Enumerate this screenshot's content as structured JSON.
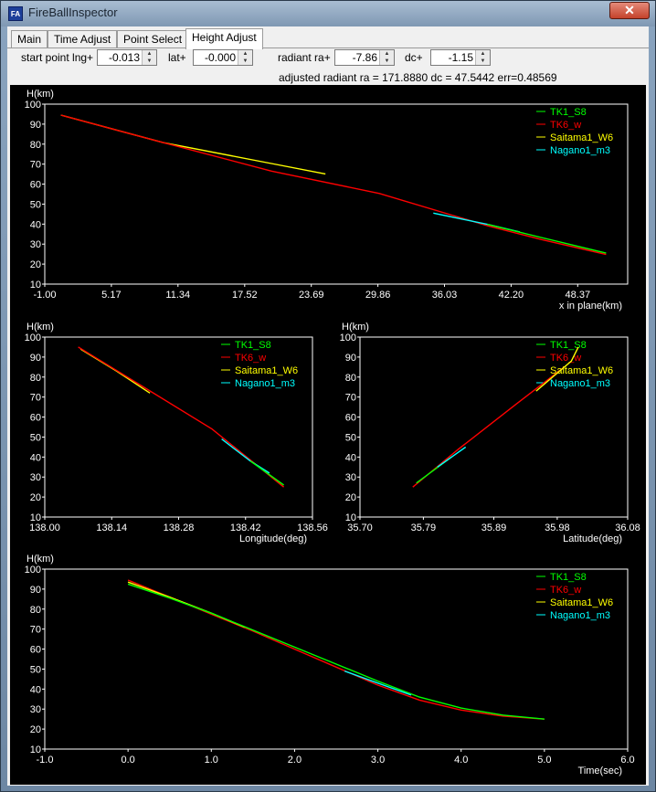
{
  "window": {
    "app_icon_text": "FA",
    "title": "FireBallInspector",
    "close_glyph": "✕"
  },
  "tabs": [
    "Main",
    "Time Adjust",
    "Point Select",
    "Height Adjust"
  ],
  "active_tab": "Height Adjust",
  "controls": {
    "start_point_lng_label": "start point lng+",
    "start_point_lng_value": "-0.013",
    "lat_label": "lat+",
    "lat_value": "-0.000",
    "radiant_ra_label": "radiant ra+",
    "radiant_ra_value": "-7.86",
    "dc_label": "dc+",
    "dc_value": "-1.15",
    "adjusted_text": "adjusted radiant ra = 171.8880  dc = 47.5442  err=0.48569"
  },
  "colors": {
    "TK1_S8": "#00ff00",
    "TK6_w": "#ff0000",
    "Saitama1_W6": "#ffff00",
    "Nagano1_m3": "#00ffff",
    "axis": "#ffffff",
    "background": "#000000"
  },
  "chart_data": [
    {
      "type": "line",
      "ylabel": "H(km)",
      "xlabel": "x in plane(km)",
      "xlim": [
        -1.0,
        53.0
      ],
      "ylim": [
        10,
        100
      ],
      "xticks": [
        "-1.00",
        "5.17",
        "11.34",
        "17.52",
        "23.69",
        "29.86",
        "36.03",
        "42.20",
        "48.37"
      ],
      "yticks": [
        "10",
        "20",
        "30",
        "40",
        "50",
        "60",
        "70",
        "80",
        "90",
        "100"
      ],
      "legend": [
        "TK1_S8",
        "TK6_w",
        "Saitama1_W6",
        "Nagano1_m3"
      ],
      "legend_position": "top-right",
      "series": [
        {
          "name": "Saitama1_W6",
          "x": [
            0.5,
            10,
            20,
            25
          ],
          "y": [
            94.5,
            80.7,
            70.3,
            65.1
          ]
        },
        {
          "name": "TK6_w",
          "x": [
            0.5,
            10,
            20,
            30,
            40,
            45,
            51
          ],
          "y": [
            94.5,
            80.7,
            66.5,
            55.3,
            39.2,
            32.3,
            24.8
          ]
        },
        {
          "name": "Nagano1_m3",
          "x": [
            35,
            40,
            43
          ],
          "y": [
            45.5,
            39.9,
            36.1
          ]
        },
        {
          "name": "TK1_S8",
          "x": [
            40,
            45,
            51
          ],
          "y": [
            39.9,
            33.3,
            25.5
          ]
        }
      ]
    },
    {
      "type": "line",
      "ylabel": "H(km)",
      "xlabel": "Longitude(deg)",
      "xlim": [
        138.0,
        138.56
      ],
      "ylim": [
        10,
        100
      ],
      "xticks": [
        "138.00",
        "138.14",
        "138.28",
        "138.42",
        "138.56"
      ],
      "yticks": [
        "10",
        "20",
        "30",
        "40",
        "50",
        "60",
        "70",
        "80",
        "90",
        "100"
      ],
      "legend": [
        "TK1_S8",
        "TK6_w",
        "Saitama1_W6",
        "Nagano1_m3"
      ],
      "legend_position": "top-right",
      "series": [
        {
          "name": "Saitama1_W6",
          "x": [
            138.075,
            138.15,
            138.22
          ],
          "y": [
            94.0,
            83.0,
            72.0
          ]
        },
        {
          "name": "TK6_w",
          "x": [
            138.07,
            138.2,
            138.35,
            138.5
          ],
          "y": [
            95.0,
            76.0,
            54.0,
            25.0
          ]
        },
        {
          "name": "Nagano1_m3",
          "x": [
            138.37,
            138.43,
            138.47
          ],
          "y": [
            49.0,
            38.0,
            32.0
          ]
        },
        {
          "name": "TK1_S8",
          "x": [
            138.43,
            138.5
          ],
          "y": [
            38.0,
            26.0
          ]
        }
      ]
    },
    {
      "type": "line",
      "ylabel": "H(km)",
      "xlabel": "Latitude(deg)",
      "xlim": [
        35.7,
        36.08
      ],
      "ylim": [
        10,
        100
      ],
      "xticks": [
        "35.70",
        "35.79",
        "35.89",
        "35.98",
        "36.08"
      ],
      "yticks": [
        "10",
        "20",
        "30",
        "40",
        "50",
        "60",
        "70",
        "80",
        "90",
        "100"
      ],
      "legend": [
        "TK1_S8",
        "TK6_w",
        "Saitama1_W6",
        "Nagano1_m3"
      ],
      "legend_position": "top-right",
      "series": [
        {
          "name": "TK6_w",
          "x": [
            35.775,
            35.84,
            35.92,
            35.99
          ],
          "y": [
            25.0,
            44.0,
            66.0,
            85.0
          ]
        },
        {
          "name": "TK1_S8",
          "x": [
            35.78,
            35.83
          ],
          "y": [
            27.0,
            40.0
          ]
        },
        {
          "name": "Nagano1_m3",
          "x": [
            35.81,
            35.85
          ],
          "y": [
            35.0,
            45.0
          ]
        },
        {
          "name": "Saitama1_W6",
          "x": [
            35.95,
            36.0,
            36.01
          ],
          "y": [
            73.0,
            88.0,
            95.0
          ]
        }
      ]
    },
    {
      "type": "line",
      "ylabel": "H(km)",
      "xlabel": "Time(sec)",
      "xlim": [
        -1.0,
        6.0
      ],
      "ylim": [
        10,
        100
      ],
      "xticks": [
        "-1.0",
        "0.0",
        "1.0",
        "2.0",
        "3.0",
        "4.0",
        "5.0",
        "6.0"
      ],
      "yticks": [
        "10",
        "20",
        "30",
        "40",
        "50",
        "60",
        "70",
        "80",
        "90",
        "100"
      ],
      "legend": [
        "TK1_S8",
        "TK6_w",
        "Saitama1_W6",
        "Nagano1_m3"
      ],
      "legend_position": "top-right",
      "series": [
        {
          "name": "TK6_w",
          "x": [
            0.0,
            0.5,
            1.0,
            1.5,
            2.0,
            2.5,
            3.0,
            3.5,
            4.0,
            4.5,
            5.0
          ],
          "y": [
            94.5,
            86.0,
            77.5,
            69.0,
            60.0,
            51.0,
            42.0,
            34.5,
            29.5,
            26.5,
            25.0
          ]
        },
        {
          "name": "Saitama1_W6",
          "x": [
            0.0,
            0.5,
            1.0,
            1.4
          ],
          "y": [
            93.5,
            86.0,
            78.0,
            71.0
          ]
        },
        {
          "name": "TK1_S8",
          "x": [
            0.0,
            0.5,
            1.0,
            1.5,
            2.0,
            2.5,
            3.0,
            3.5,
            4.0,
            4.5,
            5.0
          ],
          "y": [
            92.5,
            85.5,
            78.0,
            69.5,
            61.0,
            52.5,
            44.0,
            36.0,
            30.5,
            27.0,
            25.0
          ]
        },
        {
          "name": "Nagano1_m3",
          "x": [
            2.6,
            3.0,
            3.4
          ],
          "y": [
            49.0,
            43.0,
            37.0
          ]
        }
      ]
    }
  ]
}
